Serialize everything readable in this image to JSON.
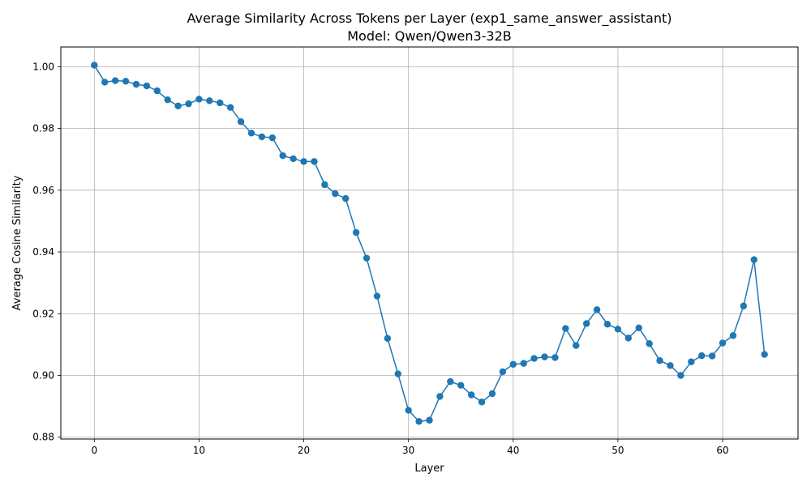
{
  "chart_data": {
    "type": "line",
    "title": "Average Similarity Across Tokens per Layer (exp1_same_answer_assistant)",
    "subtitle": "Model: Qwen/Qwen3-32B",
    "xlabel": "Layer",
    "ylabel": "Average Cosine Similarity",
    "xlim": [
      -3.2,
      67.2
    ],
    "ylim": [
      0.8794,
      1.0064
    ],
    "xticks": [
      0,
      10,
      20,
      30,
      40,
      50,
      60
    ],
    "yticks": [
      0.88,
      0.9,
      0.92,
      0.94,
      0.96,
      0.98,
      1.0
    ],
    "xtick_labels": [
      "0",
      "10",
      "20",
      "30",
      "40",
      "50",
      "60"
    ],
    "ytick_labels": [
      "0.88",
      "0.90",
      "0.92",
      "0.94",
      "0.96",
      "0.98",
      "1.00"
    ],
    "grid": true,
    "color": "#1f77b4",
    "marker": "circle",
    "series": [
      {
        "x": [
          0,
          1,
          2,
          3,
          4,
          5,
          6,
          7,
          8,
          9,
          10,
          11,
          12,
          13,
          14,
          15,
          16,
          17,
          18,
          19,
          20,
          21,
          22,
          23,
          24,
          25,
          26,
          27,
          28,
          29,
          30,
          31,
          32,
          33,
          34,
          35,
          36,
          37,
          38,
          39,
          40,
          41,
          42,
          43,
          44,
          45,
          46,
          47,
          48,
          49,
          50,
          51,
          52,
          53,
          54,
          55,
          56,
          57,
          58,
          59,
          60,
          61,
          62,
          63,
          64
        ],
        "values": [
          1.0005,
          0.995,
          0.9955,
          0.9953,
          0.9943,
          0.9938,
          0.9922,
          0.9893,
          0.9873,
          0.988,
          0.9895,
          0.989,
          0.9883,
          0.9868,
          0.9822,
          0.9785,
          0.9773,
          0.977,
          0.9712,
          0.9702,
          0.9693,
          0.9693,
          0.9618,
          0.9589,
          0.9573,
          0.9463,
          0.938,
          0.9257,
          0.912,
          0.9005,
          0.8887,
          0.8851,
          0.8855,
          0.8932,
          0.898,
          0.8968,
          0.8937,
          0.8914,
          0.8941,
          0.9012,
          0.9036,
          0.9039,
          0.9055,
          0.906,
          0.9058,
          0.9152,
          0.9097,
          0.9168,
          0.9213,
          0.9166,
          0.915,
          0.9121,
          0.9154,
          0.9103,
          0.9048,
          0.9032,
          0.9,
          0.9044,
          0.9064,
          0.9063,
          0.9105,
          0.9129,
          0.9225,
          0.9375,
          0.9068
        ]
      }
    ]
  }
}
